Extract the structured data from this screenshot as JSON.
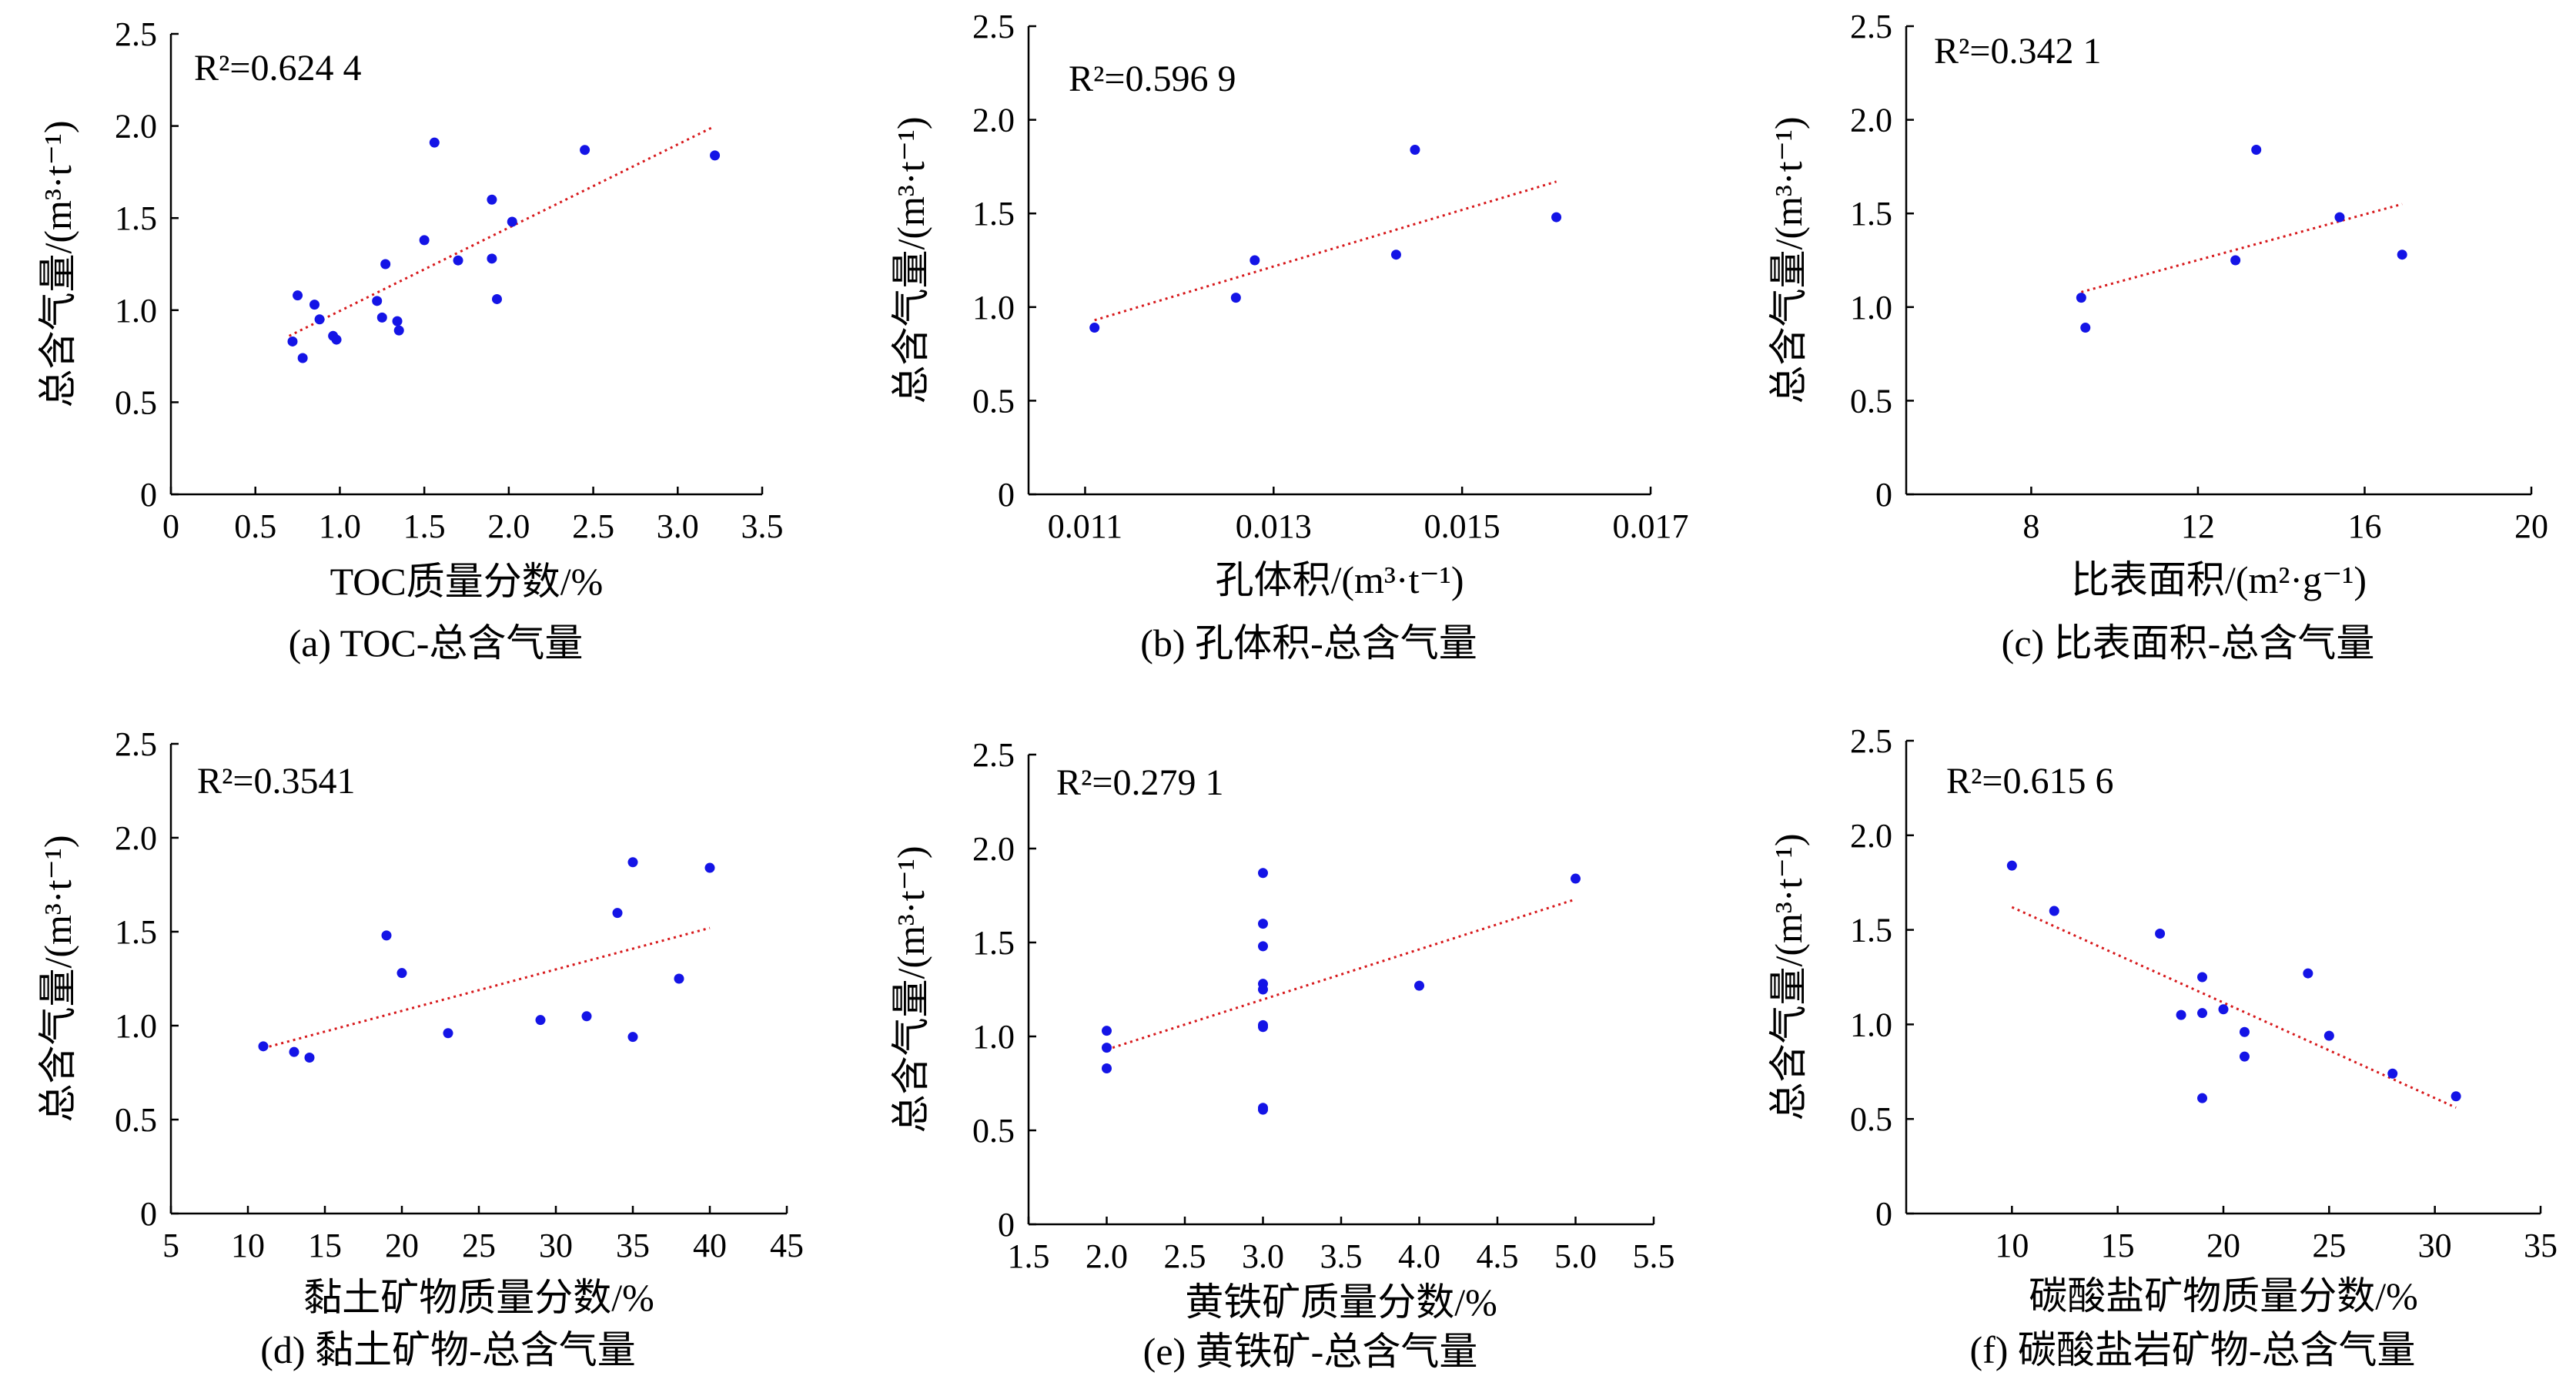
{
  "chart_data": [
    {
      "type": "scatter",
      "caption": "(a) TOC-总含气量",
      "xlabel": "TOC质量分数/%",
      "ylabel": "总含气量/(m³·t⁻¹)",
      "r2": "R²=0.624 4",
      "xlim": [
        0,
        3.5
      ],
      "ylim": [
        0,
        2.5
      ],
      "xticks": [
        "0",
        "0.5",
        "1.0",
        "1.5",
        "2.0",
        "2.5",
        "3.0",
        "3.5"
      ],
      "yticks": [
        "0",
        "0.5",
        "1.0",
        "1.5",
        "2.0",
        "2.5"
      ],
      "points": [
        [
          0.72,
          0.83
        ],
        [
          0.75,
          1.08
        ],
        [
          0.78,
          0.74
        ],
        [
          0.85,
          1.03
        ],
        [
          0.88,
          0.95
        ],
        [
          0.96,
          0.86
        ],
        [
          0.98,
          0.84
        ],
        [
          1.22,
          1.05
        ],
        [
          1.25,
          0.96
        ],
        [
          1.27,
          1.25
        ],
        [
          1.34,
          0.94
        ],
        [
          1.35,
          0.89
        ],
        [
          1.5,
          1.38
        ],
        [
          1.56,
          1.91
        ],
        [
          1.7,
          1.27
        ],
        [
          1.9,
          1.6
        ],
        [
          1.9,
          1.28
        ],
        [
          1.93,
          1.06
        ],
        [
          2.02,
          1.48
        ],
        [
          2.45,
          1.87
        ],
        [
          3.22,
          1.84
        ]
      ],
      "trend": [
        [
          0.7,
          0.86
        ],
        [
          3.2,
          1.99
        ]
      ]
    },
    {
      "type": "scatter",
      "caption": "(b) 孔体积-总含气量",
      "xlabel": "孔体积/(m³·t⁻¹)",
      "ylabel": "总含气量/(m³·t⁻¹)",
      "r2": "R²=0.596 9",
      "xlim": [
        0.0104,
        0.017
      ],
      "ylim": [
        0,
        2.5
      ],
      "xticks": [
        "0.011",
        "0.013",
        "0.015",
        "0.017"
      ],
      "xtick_values": [
        0.011,
        0.013,
        0.015,
        0.017
      ],
      "yticks": [
        "0",
        "0.5",
        "1.0",
        "1.5",
        "2.0",
        "2.5"
      ],
      "points": [
        [
          0.0111,
          0.89
        ],
        [
          0.0126,
          1.05
        ],
        [
          0.0128,
          1.25
        ],
        [
          0.0143,
          1.28
        ],
        [
          0.0145,
          1.84
        ],
        [
          0.016,
          1.48
        ]
      ],
      "trend": [
        [
          0.0111,
          0.93
        ],
        [
          0.016,
          1.67
        ]
      ]
    },
    {
      "type": "scatter",
      "caption": "(c) 比表面积-总含气量",
      "xlabel": "比表面积/(m²·g⁻¹)",
      "ylabel": "总含气量/(m³·t⁻¹)",
      "r2": "R²=0.342 1",
      "xlim": [
        5,
        20
      ],
      "ylim": [
        0,
        2.5
      ],
      "xticks": [
        "8",
        "12",
        "16",
        "20"
      ],
      "xtick_values": [
        8,
        12,
        16,
        20
      ],
      "yticks": [
        "0",
        "0.5",
        "1.0",
        "1.5",
        "2.0",
        "2.5"
      ],
      "points": [
        [
          9.2,
          1.05
        ],
        [
          9.3,
          0.89
        ],
        [
          12.9,
          1.25
        ],
        [
          13.4,
          1.84
        ],
        [
          15.4,
          1.48
        ],
        [
          16.9,
          1.28
        ]
      ],
      "trend": [
        [
          9.2,
          1.08
        ],
        [
          16.9,
          1.55
        ]
      ]
    },
    {
      "type": "scatter",
      "caption": "(d) 黏土矿物-总含气量",
      "xlabel": "黏土矿物质量分数/%",
      "ylabel": "总含气量/(m³·t⁻¹)",
      "r2": "R²=0.3541",
      "xlim": [
        5,
        45
      ],
      "ylim": [
        0,
        2.5
      ],
      "xticks": [
        "5",
        "10",
        "15",
        "20",
        "25",
        "30",
        "35",
        "40",
        "45"
      ],
      "yticks": [
        "0",
        "0.5",
        "1.0",
        "1.5",
        "2.0",
        "2.5"
      ],
      "points": [
        [
          11,
          0.89
        ],
        [
          13,
          0.86
        ],
        [
          14,
          0.83
        ],
        [
          19,
          1.48
        ],
        [
          20,
          1.28
        ],
        [
          23,
          0.96
        ],
        [
          29,
          1.03
        ],
        [
          32,
          1.05
        ],
        [
          34,
          1.6
        ],
        [
          35,
          1.87
        ],
        [
          35,
          0.94
        ],
        [
          38,
          1.25
        ],
        [
          40,
          1.84
        ]
      ],
      "trend": [
        [
          11,
          0.88
        ],
        [
          40,
          1.52
        ]
      ]
    },
    {
      "type": "scatter",
      "caption": "(e) 黄铁矿-总含气量",
      "xlabel": "黄铁矿质量分数/%",
      "ylabel": "总含气量/(m³·t⁻¹)",
      "r2": "R²=0.279 1",
      "xlim": [
        1.5,
        5.5
      ],
      "ylim": [
        0,
        2.5
      ],
      "xticks": [
        "1.5",
        "2.0",
        "2.5",
        "3.0",
        "3.5",
        "4.0",
        "4.5",
        "5.0",
        "5.5"
      ],
      "yticks": [
        "0",
        "0.5",
        "1.0",
        "1.5",
        "2.0",
        "2.5"
      ],
      "points": [
        [
          2,
          1.03
        ],
        [
          2,
          0.94
        ],
        [
          2,
          0.83
        ],
        [
          3,
          1.87
        ],
        [
          3,
          1.6
        ],
        [
          3,
          1.48
        ],
        [
          3,
          1.28
        ],
        [
          3,
          1.25
        ],
        [
          3,
          1.06
        ],
        [
          3,
          1.05
        ],
        [
          3,
          0.62
        ],
        [
          3,
          0.61
        ],
        [
          4,
          1.27
        ],
        [
          5,
          1.84
        ]
      ],
      "trend": [
        [
          2,
          0.93
        ],
        [
          5,
          1.73
        ]
      ]
    },
    {
      "type": "scatter",
      "caption": "(f) 碳酸盐岩矿物-总含气量",
      "xlabel": "碳酸盐矿物质量分数/%",
      "ylabel": "总含气量/(m³·t⁻¹)",
      "r2": "R²=0.615 6",
      "xlim": [
        5,
        35
      ],
      "ylim": [
        0,
        2.5
      ],
      "xticks": [
        "10",
        "15",
        "20",
        "25",
        "30",
        "35"
      ],
      "xtick_values": [
        10,
        15,
        20,
        25,
        30,
        35
      ],
      "yticks": [
        "0",
        "0.5",
        "1.0",
        "1.5",
        "2.0",
        "2.5"
      ],
      "points": [
        [
          10,
          1.84
        ],
        [
          12,
          1.6
        ],
        [
          17,
          1.48
        ],
        [
          18,
          1.05
        ],
        [
          19,
          1.25
        ],
        [
          19,
          1.06
        ],
        [
          19,
          0.61
        ],
        [
          20,
          1.08
        ],
        [
          21,
          0.96
        ],
        [
          21,
          0.83
        ],
        [
          24,
          1.27
        ],
        [
          25,
          0.94
        ],
        [
          28,
          0.74
        ],
        [
          31,
          0.62
        ]
      ],
      "trend": [
        [
          10,
          1.62
        ],
        [
          31,
          0.56
        ]
      ]
    }
  ]
}
